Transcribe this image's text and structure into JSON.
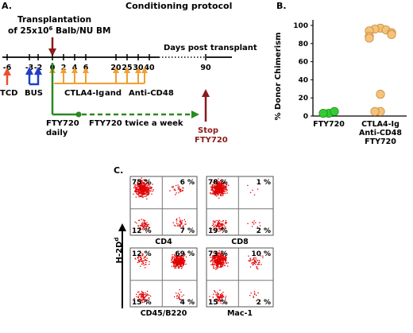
{
  "panel_a": {
    "label": "A.",
    "title": "Conditioning protocol",
    "transplant_line1": "Transplantation",
    "transplant_line2": "of 25x10",
    "transplant_sup": "6",
    "transplant_line2b": " Balb/NU BM",
    "axis_title": "Days post transplant",
    "ticks": [
      "-6",
      "-3",
      "-2",
      "0",
      "2",
      "4",
      "6",
      "20",
      "25",
      "30",
      "40",
      "90"
    ],
    "tcd": "TCD",
    "bus": "BUS",
    "ctla4": "CTLA4-Ig",
    "and": "and",
    "antcd48": "Anti-CD48",
    "fty_daily_1": "FTY720",
    "fty_daily_2": "daily",
    "fty_twice": "FTY720 twice a week",
    "stop_1": "Stop",
    "stop_2": "FTY720",
    "colors": {
      "tcd": "#e8502a",
      "bus": "#1f3fc8",
      "ctla4": "#f0a030",
      "fty": "#2a8a20",
      "transplant": "#8b1a1a"
    }
  },
  "panel_b": {
    "label": "B.",
    "chart_data": {
      "type": "scatter",
      "ylabel": "% Donor  Chimerism",
      "ylim": [
        0,
        100
      ],
      "yticks": [
        "0",
        "20",
        "40",
        "60",
        "80",
        "100"
      ],
      "categories": [
        {
          "lines": [
            "FTY720"
          ],
          "color": "#33cc33",
          "values": [
            3,
            3,
            5
          ]
        },
        {
          "lines": [
            "CTLA4-Ig",
            "Anti-CD48",
            "FTY720"
          ],
          "color": "#f5c27a",
          "values": [
            97,
            96,
            95,
            94,
            92,
            90,
            88,
            86,
            24,
            5,
            5
          ]
        }
      ]
    }
  },
  "panel_c": {
    "label": "C.",
    "y_axis_label": "H-2D",
    "y_axis_sup": "d",
    "plots": [
      {
        "q": [
          "75 %",
          "6 %",
          "12 %",
          "7 %"
        ],
        "xlabel": "CD4"
      },
      {
        "q": [
          "78 %",
          "1 %",
          "19 %",
          "2 %"
        ],
        "xlabel": "CD8"
      },
      {
        "q": [
          "12 %",
          "69 %",
          "15 %",
          "4 %"
        ],
        "xlabel": "CD45/B220"
      },
      {
        "q": [
          "73 %",
          "10 %",
          "15 %",
          "2 %"
        ],
        "xlabel": "Mac-1"
      }
    ],
    "dot_color": "#e00000"
  }
}
